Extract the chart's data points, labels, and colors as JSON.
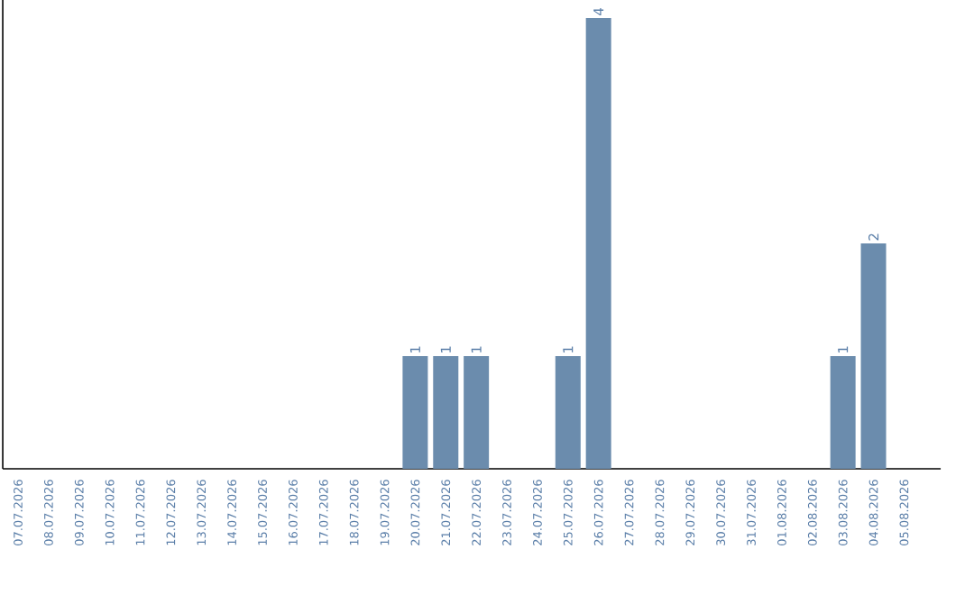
{
  "chart_data": {
    "type": "bar",
    "categories": [
      "07.07.2026",
      "08.07.2026",
      "09.07.2026",
      "10.07.2026",
      "11.07.2026",
      "12.07.2026",
      "13.07.2026",
      "14.07.2026",
      "15.07.2026",
      "16.07.2026",
      "17.07.2026",
      "18.07.2026",
      "19.07.2026",
      "20.07.2026",
      "21.07.2026",
      "22.07.2026",
      "23.07.2026",
      "24.07.2026",
      "25.07.2026",
      "26.07.2026",
      "27.07.2026",
      "28.07.2026",
      "29.07.2026",
      "30.07.2026",
      "31.07.2026",
      "01.08.2026",
      "02.08.2026",
      "03.08.2026",
      "04.08.2026",
      "05.08.2026"
    ],
    "values": [
      null,
      null,
      null,
      null,
      null,
      null,
      null,
      null,
      null,
      null,
      null,
      null,
      null,
      1,
      1,
      1,
      null,
      null,
      1,
      4,
      null,
      null,
      null,
      null,
      null,
      null,
      null,
      1,
      2,
      null
    ],
    "data_labels": true,
    "color": "#6b8cad"
  }
}
